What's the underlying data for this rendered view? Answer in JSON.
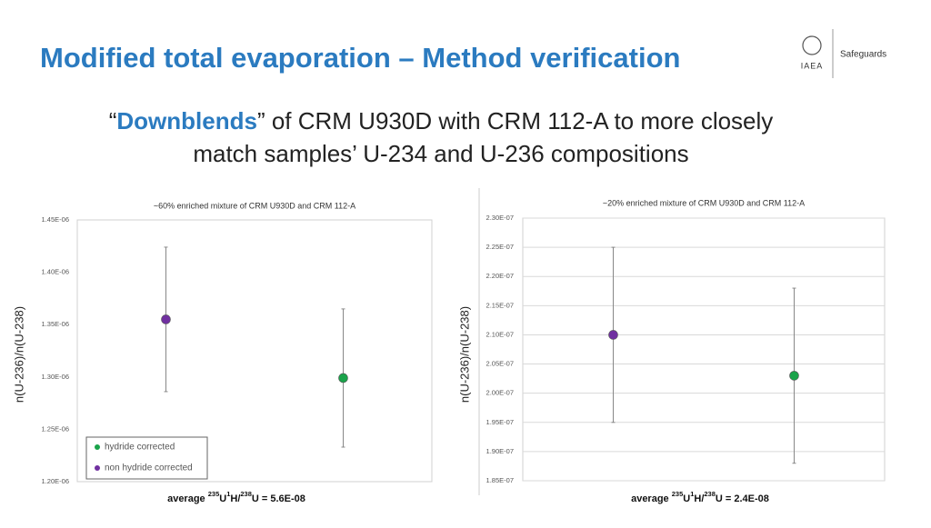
{
  "header": {
    "title": "Modified total evaporation – Method verification",
    "logo": "IAEA",
    "section": "Safeguards"
  },
  "subtitle": {
    "line1": [
      "“",
      "Downblends",
      "” of CRM U930D with CRM 112-A to more closely"
    ],
    "line2": "match samples’ U-234 and U-236 compositions"
  },
  "chart_data": [
    {
      "type": "scatter",
      "title": "~60% enriched mixture of CRM U930D and CRM 112-A",
      "y_label": "n(U-236)/n(U-238)",
      "categories": [
        null,
        null
      ],
      "series": [
        {
          "name": "hydride corrected",
          "color": "#1aa34a",
          "values": [
            null,
            1.299e-06
          ],
          "errors": [
            null,
            6.6e-08
          ]
        },
        {
          "name": "non hydride corrected",
          "color": "#7030a0",
          "values": [
            1.355e-06,
            null
          ],
          "errors": [
            6.9e-08,
            null
          ]
        }
      ],
      "ylim": [
        1.2e-06,
        1.45e-06
      ],
      "yticks": [
        {
          "value": 1.2e-06,
          "label": "1.20E-06"
        },
        {
          "value": 1.25e-06,
          "label": "1.25E-06"
        },
        {
          "value": 1.3e-06,
          "label": "1.30E-06"
        },
        {
          "value": 1.35e-06,
          "label": "1.35E-06"
        },
        {
          "value": 1.4e-06,
          "label": "1.40E-06"
        },
        {
          "value": 1.45e-06,
          "label": "1.45E-06"
        }
      ],
      "grid": false,
      "legend": "lower left",
      "annotation": [
        "average ",
        "235",
        "U",
        "1",
        "H/",
        "238",
        "U = 5.6E-08"
      ]
    },
    {
      "type": "scatter",
      "title": "~20% enriched mixture of CRM U930D and CRM 112-A",
      "y_label": "n(U-236)/n(U-238)",
      "categories": [
        null,
        null
      ],
      "series": [
        {
          "color": "#1aa34a",
          "values": [
            null,
            2.03e-07
          ],
          "errors": [
            null,
            1.5e-08
          ]
        },
        {
          "color": "#7030a0",
          "values": [
            2.1e-07,
            null
          ],
          "errors": [
            1.5e-08,
            null
          ]
        }
      ],
      "ylim": [
        1.85e-07,
        2.3e-07
      ],
      "yticks": [
        {
          "value": 1.85e-07,
          "label": "1.85E-07"
        },
        {
          "value": 1.9e-07,
          "label": "1.90E-07"
        },
        {
          "value": 1.95e-07,
          "label": "1.95E-07"
        },
        {
          "value": 2e-07,
          "label": "2.00E-07"
        },
        {
          "value": 2.05e-07,
          "label": "2.05E-07"
        },
        {
          "value": 2.1e-07,
          "label": "2.10E-07"
        },
        {
          "value": 2.15e-07,
          "label": "2.15E-07"
        },
        {
          "value": 2.2e-07,
          "label": "2.20E-07"
        },
        {
          "value": 2.25e-07,
          "label": "2.25E-07"
        },
        {
          "value": 2.3e-07,
          "label": "2.30E-07"
        }
      ],
      "grid": true,
      "annotation": [
        "average ",
        "235",
        "U",
        "1",
        "H/",
        "238",
        "U = 2.4E-08"
      ]
    }
  ]
}
